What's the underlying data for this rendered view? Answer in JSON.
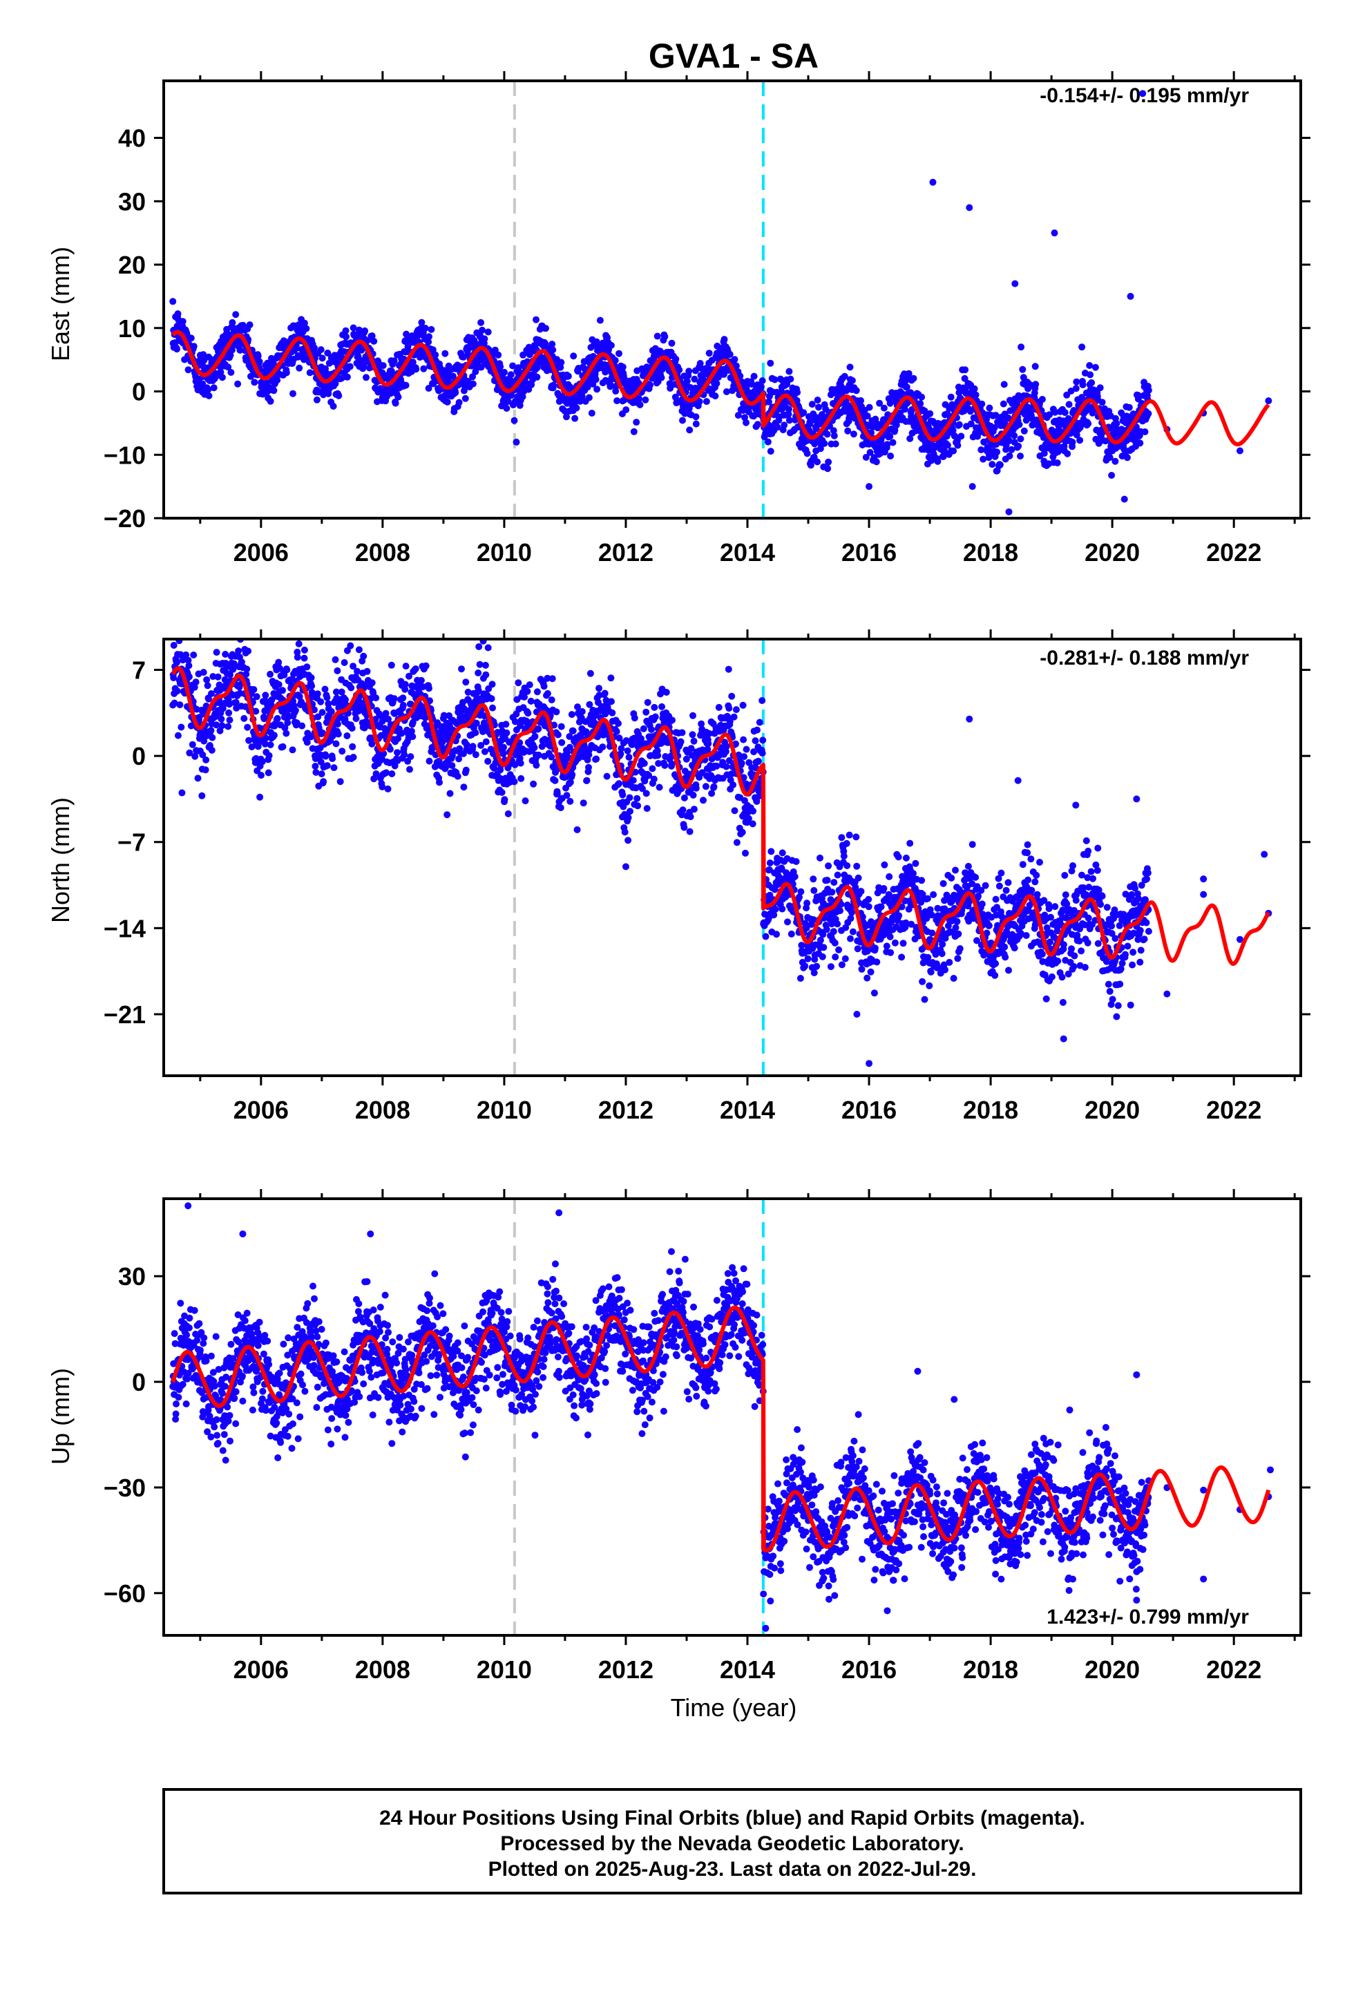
{
  "colors": {
    "final_orbits": "#1400ff",
    "model": "#ff0000",
    "event_gray": "#c8c8c8",
    "event_cyan": "#00e5ff",
    "frame": "#000000"
  },
  "chart_data": {
    "type": "scatter",
    "title": "GVA1 - SA",
    "xlabel": "Time (year)",
    "xlim": [
      2004.4,
      2023.1
    ],
    "xticks": [
      2006,
      2008,
      2010,
      2012,
      2014,
      2016,
      2018,
      2020,
      2022
    ],
    "grid": false,
    "event_lines": [
      {
        "x": 2010.17,
        "color": "gray",
        "style": "dashed"
      },
      {
        "x": 2014.26,
        "color": "cyan",
        "style": "dashed"
      }
    ],
    "data_span": [
      2004.55,
      2022.57
    ],
    "panels": [
      {
        "component": "east",
        "ylabel": "East (mm)",
        "ylim": [
          -20,
          49
        ],
        "yticks": [
          -20,
          -10,
          0,
          10,
          20,
          30,
          40
        ],
        "rate": "-0.154+/- 0.195 mm/yr",
        "rate_position": "top-right",
        "model": {
          "offset_before": 6.0,
          "trend_before": -0.5,
          "offset_after": -4.0,
          "trend_after": -0.15,
          "annual_amplitude": 3.2,
          "annual_phase_peak": 0.6,
          "step_at": 2014.26
        },
        "outliers": [
          [
            2017.05,
            33
          ],
          [
            2017.65,
            29
          ],
          [
            2019.05,
            25
          ],
          [
            2018.4,
            17
          ],
          [
            2020.3,
            15
          ],
          [
            2020.5,
            47
          ],
          [
            2010.2,
            -8
          ],
          [
            2018.3,
            -19
          ],
          [
            2017.7,
            -15
          ],
          [
            2020.2,
            -17
          ],
          [
            2016.0,
            -15
          ],
          [
            2018.5,
            7
          ],
          [
            2019.5,
            7
          ]
        ]
      },
      {
        "component": "north",
        "ylabel": "North (mm)",
        "ylim": [
          -26,
          9.5
        ],
        "yticks": [
          -21,
          -14,
          -7,
          0,
          7
        ],
        "rate": "-0.281+/- 0.188 mm/yr",
        "rate_position": "top-right",
        "model": {
          "offset_before": 5.0,
          "trend_before": -0.6,
          "offset_after": -12.5,
          "trend_after": -0.25,
          "annual_amplitude": 1.9,
          "annual_phase_peak": 0.55,
          "step_at": 2014.26
        },
        "outliers": [
          [
            2017.65,
            3
          ],
          [
            2018.45,
            -2
          ],
          [
            2019.4,
            -4
          ],
          [
            2020.4,
            -3.5
          ],
          [
            2016.0,
            -25
          ],
          [
            2015.8,
            -21
          ],
          [
            2019.2,
            -23
          ],
          [
            2012.0,
            -9
          ],
          [
            2011.2,
            -6
          ],
          [
            2004.7,
            -3
          ],
          [
            2022.5,
            -8
          ],
          [
            2021.5,
            -10
          ]
        ]
      },
      {
        "component": "up",
        "ylabel": "Up (mm)",
        "ylim": [
          -72,
          52
        ],
        "yticks": [
          -60,
          -30,
          0,
          30
        ],
        "rate": "1.423+/- 0.799 mm/yr",
        "rate_position": "bottom-right",
        "model": {
          "offset_before": 0.0,
          "trend_before": 1.4,
          "offset_after": -40.0,
          "trend_after": 1.0,
          "annual_amplitude": 8.0,
          "annual_phase_peak": 0.8,
          "step_at": 2014.26
        },
        "outliers": [
          [
            2004.8,
            50
          ],
          [
            2010.9,
            48
          ],
          [
            2007.8,
            42
          ],
          [
            2005.7,
            42
          ],
          [
            2016.8,
            3
          ],
          [
            2020.4,
            2
          ],
          [
            2016.3,
            -65
          ],
          [
            2021.5,
            -56
          ],
          [
            2020.4,
            -62
          ],
          [
            2022.6,
            -25
          ],
          [
            2014.3,
            -70
          ],
          [
            2017.4,
            -5
          ],
          [
            2019.3,
            -8
          ]
        ]
      }
    ]
  },
  "footer": {
    "line1": "24 Hour Positions Using Final Orbits (blue) and Rapid Orbits (magenta).",
    "line2": "Processed by the Nevada Geodetic Laboratory.",
    "line3": "Plotted on 2025-Aug-23. Last data on 2022-Jul-29."
  }
}
